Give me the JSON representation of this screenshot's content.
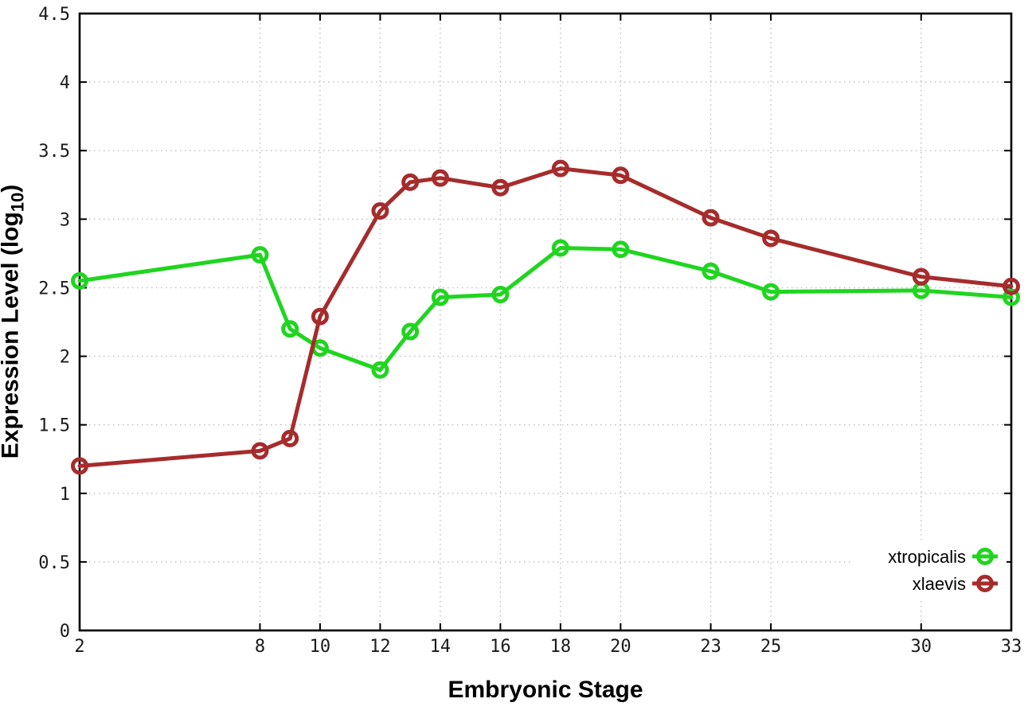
{
  "figure": {
    "background": "#ffffff",
    "border_color": "#000000",
    "grid_color": "#bdbdbd",
    "tick_label_color": "#1a1a1a"
  },
  "chart_data": {
    "type": "line",
    "title": "",
    "xlabel": "Embryonic Stage",
    "ylabel": "Expression Level (log10)",
    "ylabel_parts": {
      "base": "Expression Level (log",
      "sub": "10",
      "close": ")"
    },
    "xlim": [
      2,
      33
    ],
    "ylim": [
      0,
      4.5
    ],
    "grid": true,
    "legend_position": "inside-bottom-right",
    "x": [
      2,
      8,
      9,
      10,
      12,
      13,
      14,
      16,
      18,
      20,
      23,
      25,
      30,
      33
    ],
    "xticks": [
      2,
      8,
      10,
      12,
      14,
      16,
      18,
      20,
      23,
      25,
      30,
      33
    ],
    "xtick_labels": [
      "2",
      "8",
      "10",
      "12",
      "14",
      "16",
      "18",
      "20",
      "23",
      "25",
      "30",
      "33"
    ],
    "yticks": [
      0,
      0.5,
      1,
      1.5,
      2,
      2.5,
      3,
      3.5,
      4,
      4.5
    ],
    "ytick_labels": [
      "0",
      "0.5",
      "1",
      "1.5",
      "2",
      "2.5",
      "3",
      "3.5",
      "4",
      "4.5"
    ],
    "series": [
      {
        "name": "xtropicalis",
        "color": "#20d520",
        "marker": "open-circle",
        "values": [
          2.55,
          2.74,
          2.2,
          2.06,
          1.9,
          2.18,
          2.43,
          2.45,
          2.79,
          2.78,
          2.62,
          2.47,
          2.48,
          2.43
        ]
      },
      {
        "name": "xlaevis",
        "color": "#a62c2c",
        "marker": "open-circle",
        "values": [
          1.2,
          1.31,
          1.4,
          2.29,
          3.06,
          3.27,
          3.3,
          3.23,
          3.37,
          3.32,
          3.01,
          2.86,
          2.58,
          2.51
        ]
      }
    ]
  }
}
